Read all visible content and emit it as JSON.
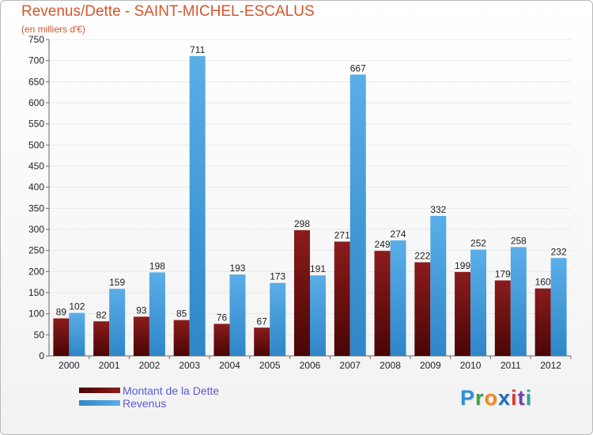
{
  "header": {
    "title": "Revenus/Dette - SAINT-MICHEL-ESCALUS",
    "subtitle": "(en milliers d'€)"
  },
  "legend": {
    "dette_label": "Montant de la Dette",
    "revenus_label": "Revenus"
  },
  "logo": {
    "letters": [
      "P",
      "r",
      "o",
      "x",
      "i",
      "t",
      "i"
    ],
    "colors": [
      "#2e8fd6",
      "#3aa24d",
      "#f08a1c",
      "#1f6fb8",
      "#d63a2f",
      "#7b3fb0",
      "#2ea3a3"
    ]
  },
  "colors": {
    "dette": "#8b1c1c",
    "dette_dark": "#4a0505",
    "revenus": "#5aaee8",
    "revenus_dark": "#2f86c8",
    "axis_text": "#222222",
    "grid": "#e9e9e9"
  },
  "chart_data": {
    "type": "bar",
    "title": "Revenus/Dette - SAINT-MICHEL-ESCALUS",
    "ylabel": "(en milliers d'€)",
    "xlabel": "",
    "ylim": [
      0,
      750
    ],
    "ytick_step": 50,
    "grid": true,
    "categories": [
      "2000",
      "2001",
      "2002",
      "2003",
      "2004",
      "2005",
      "2006",
      "2007",
      "2008",
      "2009",
      "2010",
      "2011",
      "2012"
    ],
    "series": [
      {
        "name": "Montant de la Dette",
        "values": [
          89,
          82,
          93,
          85,
          76,
          67,
          298,
          271,
          249,
          222,
          199,
          179,
          160
        ]
      },
      {
        "name": "Revenus",
        "values": [
          102,
          159,
          198,
          711,
          193,
          173,
          191,
          667,
          274,
          332,
          252,
          258,
          232
        ]
      }
    ],
    "legend_position": "bottom-left"
  }
}
